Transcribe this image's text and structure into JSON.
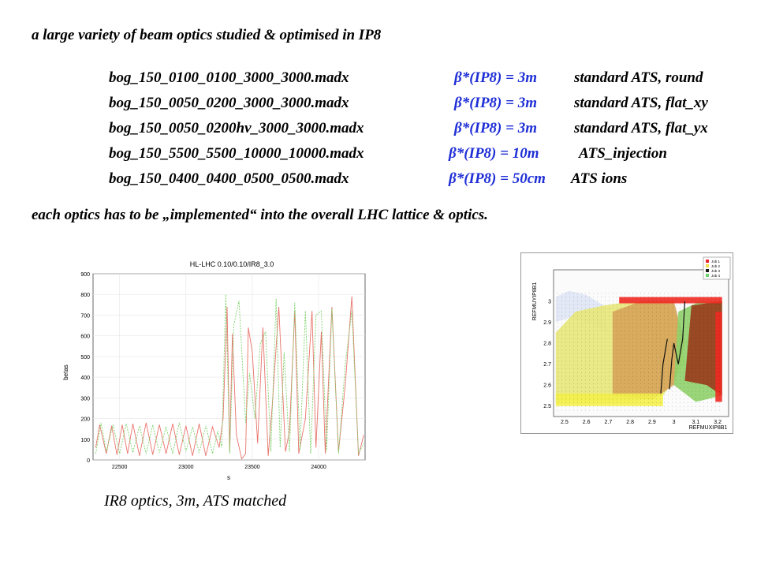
{
  "heading": "a large variety of beam optics studied & optimised in IP8",
  "optics": [
    {
      "file": "bog_150_0100_0100_3000_3000.madx",
      "beta": "β*(IP8) = 3m",
      "desc": "standard ATS, round"
    },
    {
      "file": "bog_150_0050_0200_3000_3000.madx",
      "beta": "β*(IP8) = 3m",
      "desc": "standard ATS, flat_xy"
    },
    {
      "file": "bog_150_0050_0200hv_3000_3000.madx",
      "beta": "β*(IP8) = 3m",
      "desc": "standard ATS, flat_yx"
    },
    {
      "file": "bog_150_5500_5500_10000_10000.madx",
      "beta": "β*(IP8) = 10m",
      "desc": "ATS_injection"
    },
    {
      "file": "bog_150_0400_0400_0500_0500.madx",
      "beta": "β*(IP8) = 50cm",
      "desc": "ATS ions"
    }
  ],
  "footer": "each optics has to be „implemented“ into the overall LHC lattice & optics.",
  "caption": "IR8 optics, 3m, ATS matched",
  "chart_data": [
    {
      "type": "line",
      "title": "HL-LHC 0.10/0.10/IR8_3.0",
      "xlabel": "s",
      "ylabel": "betas",
      "xlim": [
        22300,
        24350
      ],
      "ylim": [
        0,
        900
      ],
      "xticks": [
        22500,
        23000,
        23500,
        24000
      ],
      "yticks": [
        0,
        100,
        200,
        300,
        400,
        500,
        600,
        700,
        800,
        900
      ],
      "series": [
        {
          "color": "#e8746c",
          "style": "solid",
          "x": [
            22320,
            22350,
            22400,
            22440,
            22480,
            22520,
            22560,
            22600,
            22650,
            22700,
            22750,
            22800,
            22850,
            22900,
            22950,
            23000,
            23050,
            23100,
            23150,
            23200,
            23250,
            23280,
            23310,
            23330,
            23350,
            23380,
            23420,
            23450,
            23470,
            23500,
            23540,
            23580,
            23620,
            23650,
            23700,
            23750,
            23780,
            23820,
            23850,
            23900,
            23950,
            23980,
            24020,
            24050,
            24100,
            24150,
            24200,
            24250,
            24300,
            24340
          ],
          "y": [
            60,
            170,
            30,
            165,
            25,
            170,
            30,
            175,
            20,
            180,
            25,
            170,
            30,
            175,
            25,
            165,
            20,
            175,
            20,
            160,
            60,
            200,
            740,
            40,
            610,
            120,
            5,
            30,
            640,
            520,
            80,
            640,
            20,
            260,
            740,
            40,
            140,
            720,
            30,
            200,
            720,
            60,
            620,
            30,
            740,
            40,
            360,
            790,
            20,
            120
          ]
        },
        {
          "color": "#7cd26a",
          "style": "dashed",
          "x": [
            22320,
            22360,
            22400,
            22450,
            22500,
            22550,
            22600,
            22650,
            22700,
            22750,
            22800,
            22850,
            22900,
            22950,
            23000,
            23050,
            23100,
            23150,
            23200,
            23240,
            23270,
            23300,
            23330,
            23360,
            23400,
            23450,
            23480,
            23520,
            23560,
            23600,
            23640,
            23680,
            23710,
            23740,
            23780,
            23820,
            23860,
            23900,
            23940,
            23980,
            24020,
            24060,
            24100,
            24150,
            24200,
            24250,
            24300,
            24340
          ],
          "y": [
            30,
            180,
            40,
            170,
            30,
            175,
            35,
            165,
            30,
            170,
            35,
            160,
            30,
            180,
            40,
            160,
            35,
            165,
            30,
            140,
            60,
            800,
            30,
            650,
            770,
            180,
            420,
            200,
            560,
            620,
            40,
            780,
            60,
            520,
            40,
            760,
            50,
            720,
            30,
            700,
            720,
            40,
            730,
            30,
            460,
            720,
            30,
            80
          ]
        }
      ]
    },
    {
      "type": "heatmap",
      "xlabel": "REFMUXIP8B1",
      "ylabel": "REFMUYIP8B1",
      "xlim": [
        2.45,
        3.25
      ],
      "ylim": [
        2.45,
        3.15
      ],
      "xticks": [
        2.5,
        2.6,
        2.7,
        2.8,
        2.9,
        3,
        3.1,
        3.2
      ],
      "yticks": [
        2.5,
        2.6,
        2.7,
        2.8,
        2.9,
        3
      ],
      "legend": [
        "Job 1",
        "Job 2",
        "Job 3",
        "Job 4"
      ],
      "legend_colors": [
        "#e8262a",
        "#f4e04a",
        "#1a1a1a",
        "#6fd36a"
      ]
    }
  ]
}
